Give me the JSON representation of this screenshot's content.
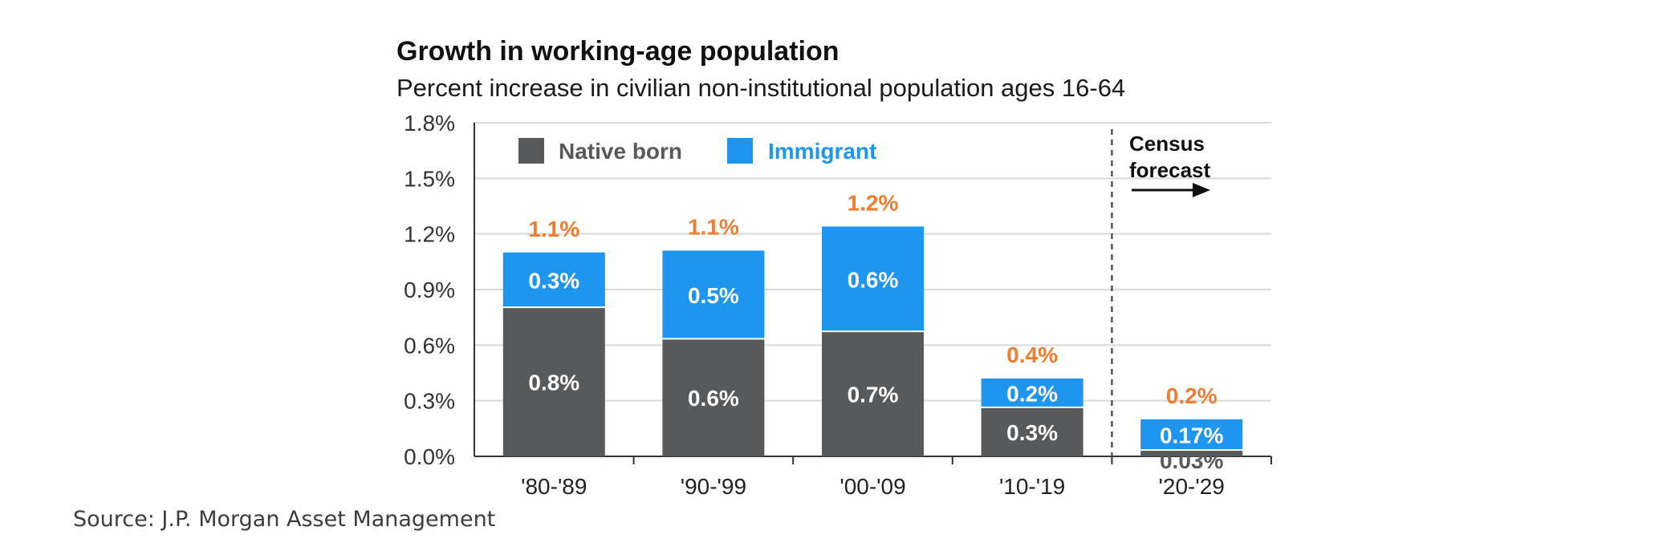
{
  "source": "Source: J.P. Morgan Asset Management",
  "colors": {
    "native": "#58595b",
    "immigrant": "#1e96f0",
    "total": "#ed7d31",
    "grid": "#d9d9d9",
    "axis": "#333333"
  },
  "chart_data": {
    "type": "bar",
    "stacked": true,
    "title": "Growth in working-age population",
    "subtitle": "Percent increase in civilian non-institutional population ages 16-64",
    "categories": [
      "'80-'89",
      "'90-'99",
      "'00-'09",
      "'10-'19",
      "'20-'29"
    ],
    "series": [
      {
        "name": "Native born",
        "values": [
          0.8,
          0.63,
          0.67,
          0.26,
          0.03
        ],
        "labels": [
          "0.8%",
          "0.6%",
          "0.7%",
          "0.3%",
          "0.03%"
        ]
      },
      {
        "name": "Immigrant",
        "values": [
          0.3,
          0.48,
          0.57,
          0.16,
          0.17
        ],
        "labels": [
          "0.3%",
          "0.5%",
          "0.6%",
          "0.2%",
          "0.17%"
        ]
      }
    ],
    "totals": [
      "1.1%",
      "1.1%",
      "1.2%",
      "0.4%",
      "0.2%"
    ],
    "yticks": [
      "0.0%",
      "0.3%",
      "0.6%",
      "0.9%",
      "1.2%",
      "1.5%",
      "1.8%"
    ],
    "ylim": [
      0,
      1.8
    ],
    "grid": true,
    "legend_position": "top-left",
    "annotation": {
      "line1": "Census",
      "line2": "forecast"
    }
  }
}
